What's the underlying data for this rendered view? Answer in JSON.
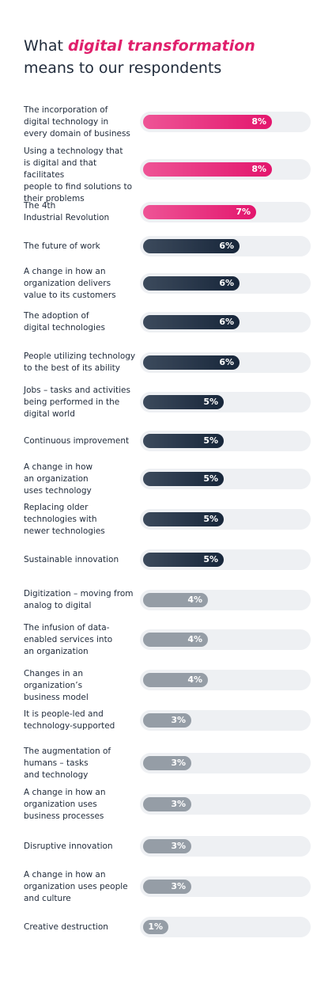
{
  "title": {
    "prefix": "What ",
    "highlight": "digital transformation",
    "suffix": " means to our respondents"
  },
  "chart_data": {
    "type": "bar",
    "orientation": "horizontal",
    "unit": "%",
    "xlim": [
      0,
      10
    ],
    "grid": false,
    "colors": {
      "high": "#e3166d",
      "mid": "#17263a",
      "low": "#959da6",
      "track": "#eef0f3"
    },
    "categories": [
      "The incorporation of\ndigital technology in\nevery domain of business",
      "Using a technology that\nis digital and that facilitates\npeople to find solutions to\ntheir problems",
      "The 4th\nIndustrial Revolution",
      "The future of work",
      "A change in how an\norganization delivers\nvalue to its customers",
      "The adoption of\ndigital technologies",
      "People utilizing technology\nto the best of its ability",
      "Jobs – tasks and activities\nbeing performed in the\ndigital world",
      "Continuous improvement",
      "A change in how\nan organization\nuses technology",
      "Replacing older\ntechnologies with\nnewer technologies",
      "Sustainable innovation",
      "Digitization – moving from\nanalog to digital",
      "The infusion of data-\nenabled services into\nan organization",
      "Changes in an organization’s\nbusiness model",
      "It is people-led and\ntechnology-supported",
      "The augmentation of\nhumans – tasks\nand technology",
      "A change in how an\norganization uses\nbusiness processes",
      "Disruptive innovation",
      "A change in how an\norganization uses people\nand culture",
      "Creative destruction"
    ],
    "values": [
      8,
      8,
      7,
      6,
      6,
      6,
      6,
      5,
      5,
      5,
      5,
      5,
      4,
      4,
      4,
      3,
      3,
      3,
      3,
      3,
      1
    ],
    "labels": [
      "8%",
      "8%",
      "7%",
      "6%",
      "6%",
      "6%",
      "6%",
      "5%",
      "5%",
      "5%",
      "5%",
      "5%",
      "4%",
      "4%",
      "4%",
      "3%",
      "3%",
      "3%",
      "3%",
      "3%",
      "1%"
    ]
  }
}
